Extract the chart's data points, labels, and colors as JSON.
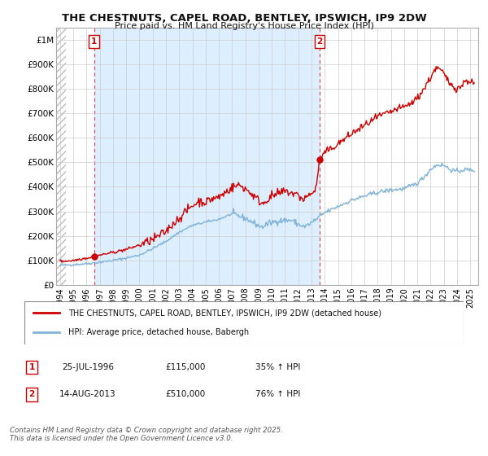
{
  "title": "THE CHESTNUTS, CAPEL ROAD, BENTLEY, IPSWICH, IP9 2DW",
  "subtitle": "Price paid vs. HM Land Registry's House Price Index (HPI)",
  "xlim_start": 1993.7,
  "xlim_end": 2025.6,
  "ylim_min": 0,
  "ylim_max": 1050000,
  "yticks": [
    0,
    100000,
    200000,
    300000,
    400000,
    500000,
    600000,
    700000,
    800000,
    900000,
    1000000
  ],
  "ytick_labels": [
    "£0",
    "£100K",
    "£200K",
    "£300K",
    "£400K",
    "£500K",
    "£600K",
    "£700K",
    "£800K",
    "£900K",
    "£1M"
  ],
  "sale1_x": 1996.57,
  "sale1_y": 115000,
  "sale1_label": "1",
  "sale1_date": "25-JUL-1996",
  "sale1_price": "£115,000",
  "sale1_hpi": "35% ↑ HPI",
  "sale2_x": 2013.62,
  "sale2_y": 510000,
  "sale2_label": "2",
  "sale2_date": "14-AUG-2013",
  "sale2_price": "£510,000",
  "sale2_hpi": "76% ↑ HPI",
  "red_line_color": "#cc0000",
  "blue_line_color": "#7fb3d9",
  "fill_color": "#ddeeff",
  "background_color": "#ffffff",
  "grid_color": "#cccccc",
  "hatch_color": "#cccccc",
  "legend_line1": "THE CHESTNUTS, CAPEL ROAD, BENTLEY, IPSWICH, IP9 2DW (detached house)",
  "legend_line2": "HPI: Average price, detached house, Babergh",
  "footer1": "Contains HM Land Registry data © Crown copyright and database right 2025.",
  "footer2": "This data is licensed under the Open Government Licence v3.0.",
  "xticks": [
    1994,
    1995,
    1996,
    1997,
    1998,
    1999,
    2000,
    2001,
    2002,
    2003,
    2004,
    2005,
    2006,
    2007,
    2008,
    2009,
    2010,
    2011,
    2012,
    2013,
    2014,
    2015,
    2016,
    2017,
    2018,
    2019,
    2020,
    2021,
    2022,
    2023,
    2024,
    2025
  ]
}
